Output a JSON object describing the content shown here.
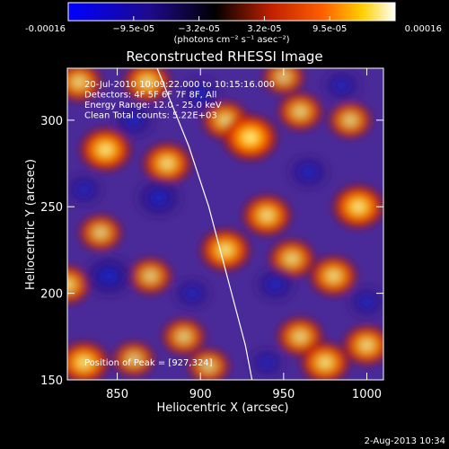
{
  "chart_data": {
    "type": "heatmap",
    "title": "Reconstructed RHESSI Image",
    "xlabel": "Heliocentric X (arcsec)",
    "ylabel": "Heliocentric Y (arcsec)",
    "xlim": [
      820,
      1010
    ],
    "ylim": [
      150,
      330
    ],
    "x_ticks": [
      850,
      900,
      950,
      1000
    ],
    "y_ticks": [
      150,
      200,
      250,
      300
    ],
    "colorbar": {
      "ticks": [
        "-0.00016",
        "−9.5e-05",
        "−3.2e-05",
        "3.2e-05",
        "9.5e-05",
        "0.00016"
      ],
      "label": "(photons cm⁻² s⁻¹ asec⁻²)",
      "colormap": [
        "#0000ff",
        "#1e0a8c",
        "#000000",
        "#c02000",
        "#ff6000",
        "#ffd000",
        "#ffffff"
      ]
    },
    "annotations": [
      "20-Jul-2010 10:09:22.000 to 10:15:16.000",
      "Detectors: 4F 5F 6F 7F 8F, All",
      "Energy Range: 12.0 - 25.0 keV",
      "Clean    Total counts: 5.22E+03"
    ],
    "peak_label": "Position of Peak = [927,324]",
    "peak": [
      927,
      324
    ],
    "limb": [
      [
        874,
        330
      ],
      [
        893,
        285
      ],
      [
        905,
        250
      ],
      [
        916,
        210
      ],
      [
        927,
        170
      ],
      [
        931,
        150
      ]
    ],
    "blobs": [
      {
        "x": 827,
        "y": 322,
        "v": 0.7
      },
      {
        "x": 843,
        "y": 283,
        "v": 0.9
      },
      {
        "x": 868,
        "y": 322,
        "v": 0.75
      },
      {
        "x": 880,
        "y": 275,
        "v": 0.8
      },
      {
        "x": 870,
        "y": 210,
        "v": 0.6
      },
      {
        "x": 915,
        "y": 300,
        "v": 0.7
      },
      {
        "x": 930,
        "y": 290,
        "v": 1.0
      },
      {
        "x": 915,
        "y": 225,
        "v": 0.85
      },
      {
        "x": 940,
        "y": 245,
        "v": 0.8
      },
      {
        "x": 955,
        "y": 220,
        "v": 0.7
      },
      {
        "x": 980,
        "y": 210,
        "v": 0.75
      },
      {
        "x": 995,
        "y": 250,
        "v": 0.9
      },
      {
        "x": 990,
        "y": 300,
        "v": 0.6
      },
      {
        "x": 960,
        "y": 305,
        "v": 0.65
      },
      {
        "x": 830,
        "y": 160,
        "v": 0.85
      },
      {
        "x": 860,
        "y": 162,
        "v": 0.55
      },
      {
        "x": 890,
        "y": 175,
        "v": 0.6
      },
      {
        "x": 905,
        "y": 158,
        "v": 0.55
      },
      {
        "x": 960,
        "y": 175,
        "v": 0.7
      },
      {
        "x": 975,
        "y": 160,
        "v": 0.8
      },
      {
        "x": 1000,
        "y": 170,
        "v": 0.75
      },
      {
        "x": 840,
        "y": 235,
        "v": 0.6
      },
      {
        "x": 820,
        "y": 205,
        "v": 0.7
      },
      {
        "x": 950,
        "y": 325,
        "v": 0.55
      },
      {
        "x": 895,
        "y": 200,
        "v": -0.5
      },
      {
        "x": 875,
        "y": 255,
        "v": -0.8
      },
      {
        "x": 845,
        "y": 210,
        "v": -0.9
      },
      {
        "x": 900,
        "y": 315,
        "v": -0.6
      },
      {
        "x": 945,
        "y": 205,
        "v": -0.6
      },
      {
        "x": 965,
        "y": 270,
        "v": -0.6
      },
      {
        "x": 1000,
        "y": 195,
        "v": -0.5
      },
      {
        "x": 985,
        "y": 320,
        "v": -0.5
      },
      {
        "x": 860,
        "y": 300,
        "v": -0.6
      },
      {
        "x": 940,
        "y": 160,
        "v": -0.4
      },
      {
        "x": 830,
        "y": 260,
        "v": -0.5
      }
    ]
  },
  "footer": {
    "date": "2-Aug-2013 10:34"
  }
}
